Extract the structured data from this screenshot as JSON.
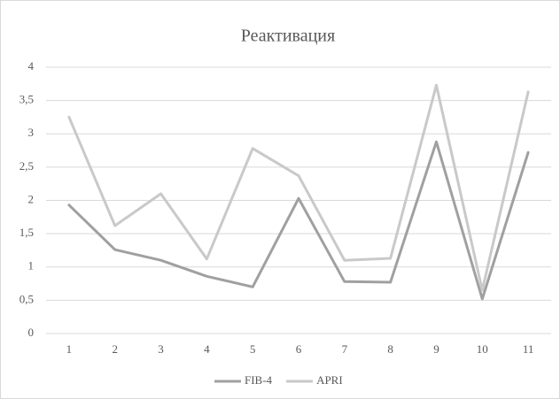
{
  "chart_data": {
    "type": "line",
    "title": "Реактивация",
    "categories": [
      "1",
      "2",
      "3",
      "4",
      "5",
      "6",
      "7",
      "8",
      "9",
      "10",
      "11"
    ],
    "series": [
      {
        "name": "FIB-4",
        "color": "#a0a0a0",
        "values": [
          1.93,
          1.26,
          1.1,
          0.86,
          0.7,
          2.03,
          0.78,
          0.77,
          2.88,
          0.52,
          2.72
        ]
      },
      {
        "name": "APRI",
        "color": "#c9c9c9",
        "values": [
          3.25,
          1.62,
          2.1,
          1.12,
          2.78,
          2.37,
          1.1,
          1.13,
          3.73,
          0.65,
          3.63
        ]
      }
    ],
    "ylim": [
      0,
      4
    ],
    "yticks": [
      0,
      {
        "value": 0.5,
        "label": "0,5"
      },
      1,
      {
        "value": 1.5,
        "label": "1,5"
      },
      2,
      {
        "value": 2.5,
        "label": "2,5"
      },
      3,
      {
        "value": 3.5,
        "label": "3,5"
      },
      4
    ],
    "grid": true,
    "legend": "bottom"
  }
}
